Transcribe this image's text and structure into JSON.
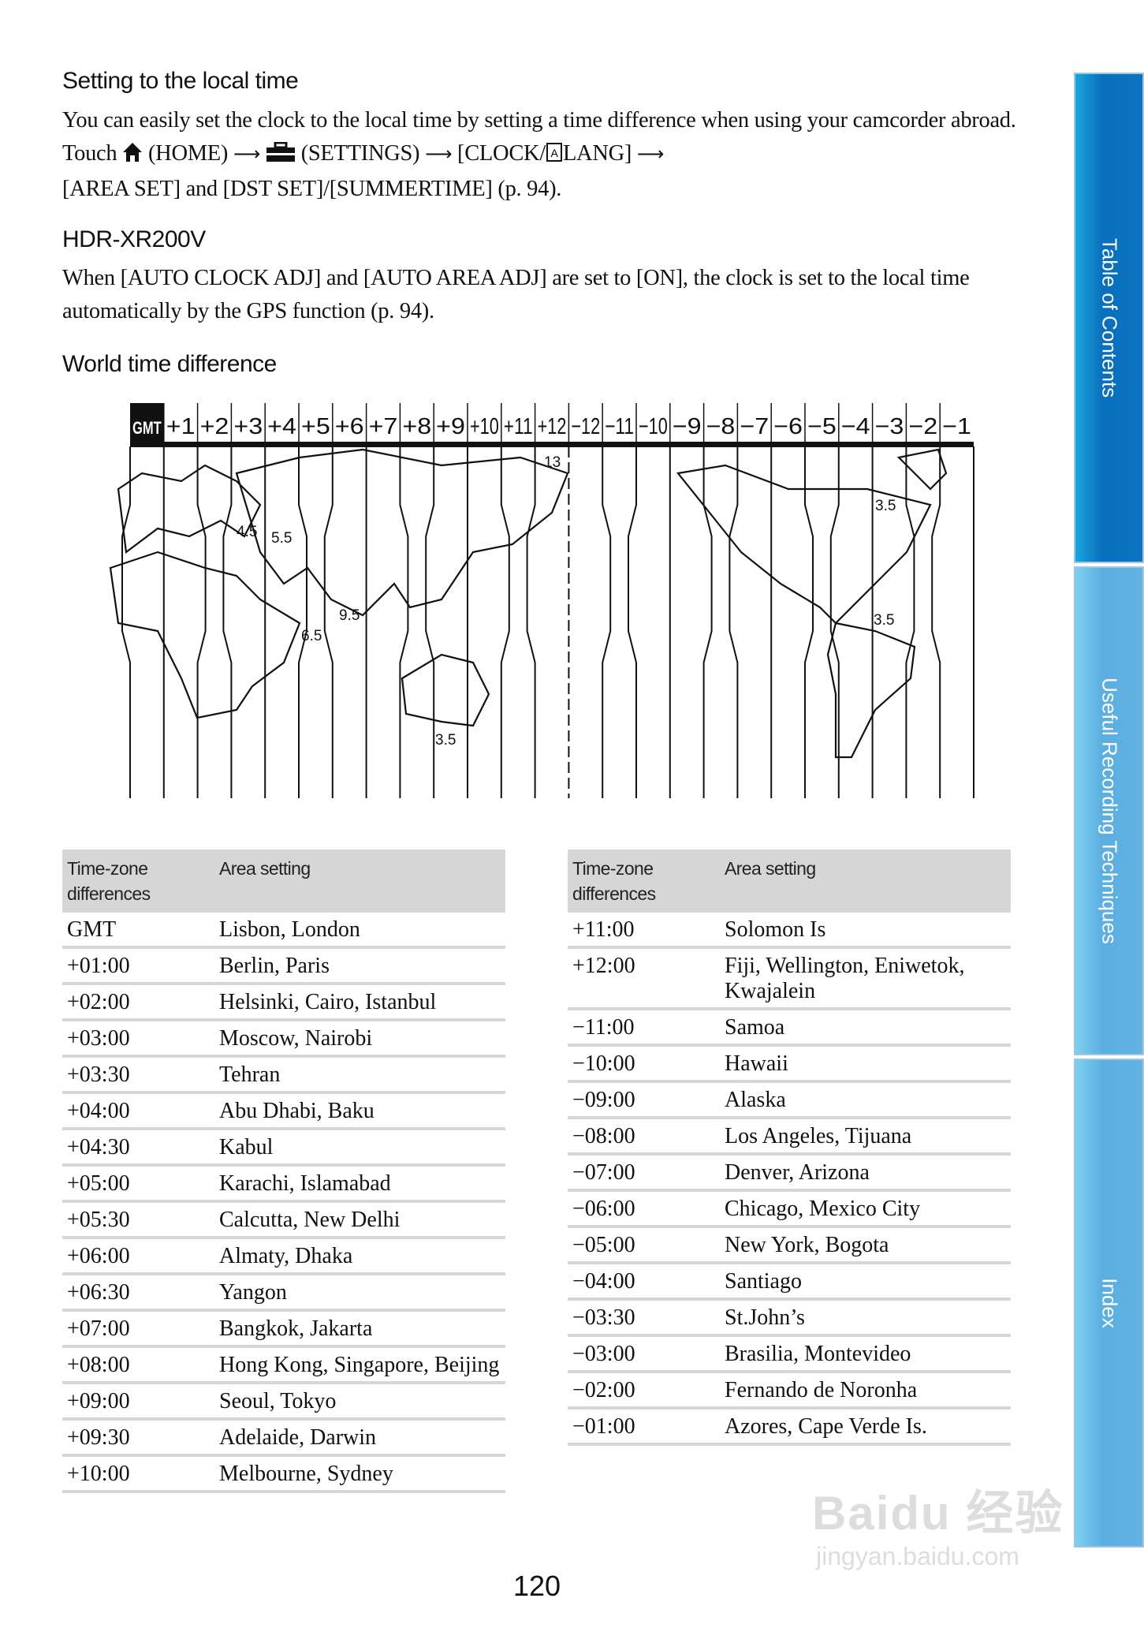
{
  "section1": {
    "title": "Setting to the local time",
    "text_a": "You can easily set the clock to the local time by setting a time difference when using your camcorder abroad. Touch",
    "home": "(HOME)",
    "settings": "(SETTINGS)",
    "clock": "[CLOCK/",
    "lang": "LANG]",
    "text_b": "[AREA SET] and [DST SET]/[SUMMERTIME] (p. 94).",
    "icons": [
      "home-icon",
      "settings-toolbox-icon",
      "language-icon",
      "arrow-right-icon"
    ]
  },
  "section2": {
    "title": "HDR-XR200V",
    "text": "When [AUTO CLOCK ADJ] and [AUTO AREA ADJ] are set to [ON], the clock is set to the local time automatically by the GPS function (p. 94)."
  },
  "section3": {
    "title": "World time difference"
  },
  "map": {
    "zones": [
      "GMT",
      "+1",
      "+2",
      "+3",
      "+4",
      "+5",
      "+6",
      "+7",
      "+8",
      "+9",
      "+10",
      "+11",
      "+12",
      "−12",
      "−11",
      "−10",
      "−9",
      "−8",
      "−7",
      "−6",
      "−5",
      "−4",
      "−3",
      "−2",
      "−1"
    ],
    "labels": [
      "13",
      "3.5",
      "4.5",
      "5.5",
      "6.5",
      "9.5",
      "3.5",
      "3.5"
    ]
  },
  "table_left": {
    "headers": [
      "Time-zone differences",
      "Area setting"
    ],
    "rows": [
      [
        "GMT",
        "Lisbon, London"
      ],
      [
        "+01:00",
        "Berlin, Paris"
      ],
      [
        "+02:00",
        "Helsinki, Cairo, Istanbul"
      ],
      [
        "+03:00",
        "Moscow, Nairobi"
      ],
      [
        "+03:30",
        "Tehran"
      ],
      [
        "+04:00",
        "Abu Dhabi, Baku"
      ],
      [
        "+04:30",
        "Kabul"
      ],
      [
        "+05:00",
        "Karachi, Islamabad"
      ],
      [
        "+05:30",
        "Calcutta, New Delhi"
      ],
      [
        "+06:00",
        "Almaty, Dhaka"
      ],
      [
        "+06:30",
        "Yangon"
      ],
      [
        "+07:00",
        "Bangkok, Jakarta"
      ],
      [
        "+08:00",
        "Hong Kong, Singapore, Beijing"
      ],
      [
        "+09:00",
        "Seoul, Tokyo"
      ],
      [
        "+09:30",
        "Adelaide, Darwin"
      ],
      [
        "+10:00",
        "Melbourne, Sydney"
      ]
    ]
  },
  "table_right": {
    "headers": [
      "Time-zone differences",
      "Area setting"
    ],
    "rows": [
      [
        "+11:00",
        "Solomon Is"
      ],
      [
        "+12:00",
        "Fiji, Wellington, Eniwetok, Kwajalein"
      ],
      [
        "−11:00",
        "Samoa"
      ],
      [
        "−10:00",
        "Hawaii"
      ],
      [
        "−09:00",
        "Alaska"
      ],
      [
        "−08:00",
        "Los Angeles, Tijuana"
      ],
      [
        "−07:00",
        "Denver, Arizona"
      ],
      [
        "−06:00",
        "Chicago, Mexico City"
      ],
      [
        "−05:00",
        "New York, Bogota"
      ],
      [
        "−04:00",
        "Santiago"
      ],
      [
        "−03:30",
        "St.John’s"
      ],
      [
        "−03:00",
        "Brasilia, Montevideo"
      ],
      [
        "−02:00",
        "Fernando de Noronha"
      ],
      [
        "−01:00",
        "Azores, Cape Verde Is."
      ]
    ]
  },
  "sidebar": {
    "tabs": [
      "Table of Contents",
      "Useful Recording Techniques",
      "Index"
    ],
    "colors": [
      "#0b74c1",
      "#5fb1e2",
      "#5fb1e2"
    ]
  },
  "page_number": "120",
  "watermark": {
    "logo": "Baidu 经验",
    "url": "jingyan.baidu.com"
  }
}
